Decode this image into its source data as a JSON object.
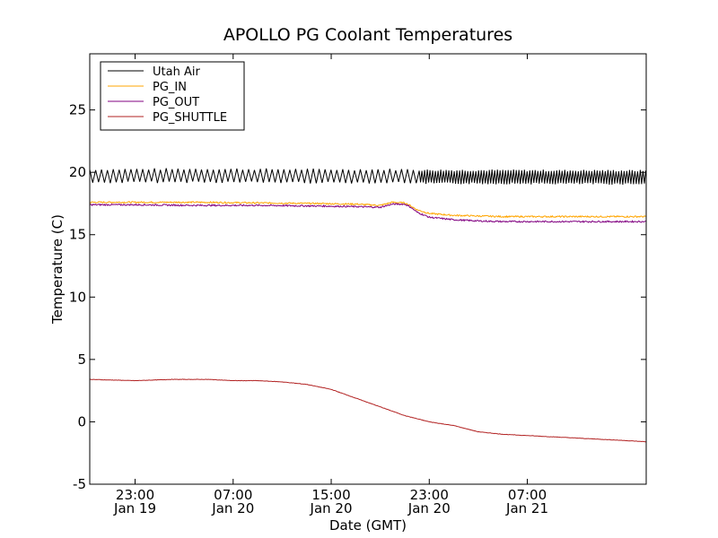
{
  "chart_data": {
    "type": "line",
    "title": "APOLLO PG Coolant Temperatures",
    "xlabel": "Date (GMT)",
    "ylabel": "Temperature (C)",
    "ylim": [
      -5,
      29.5
    ],
    "xlim": [
      -3.7,
      41.7
    ],
    "x_unit": "hours since Jan 19 23:00 GMT",
    "yticks": [
      -5,
      0,
      5,
      10,
      15,
      20,
      25
    ],
    "xticks": [
      {
        "value": 0,
        "time": "23:00",
        "date": "Jan 19"
      },
      {
        "value": 8,
        "time": "07:00",
        "date": "Jan 20"
      },
      {
        "value": 16,
        "time": "15:00",
        "date": "Jan 20"
      },
      {
        "value": 24,
        "time": "23:00",
        "date": "Jan 20"
      },
      {
        "value": 32,
        "time": "07:00",
        "date": "Jan 21"
      }
    ],
    "grid": false,
    "legend_position": "top-left",
    "series": [
      {
        "name": "Utah Air",
        "color": "#000000",
        "note": "oscillating about 19.7 C, amplitude ~0.5; denser sampling after hour 23",
        "x": [
          -3.7,
          5,
          15,
          23,
          23.2,
          41.7
        ],
        "y": [
          19.7,
          19.75,
          19.7,
          19.7,
          19.65,
          19.6
        ]
      },
      {
        "name": "PG_IN",
        "color": "#ffa500",
        "x": [
          -3.7,
          0,
          5,
          10,
          15,
          18,
          20,
          21,
          22,
          22.5,
          23,
          24,
          26,
          28,
          30,
          34,
          41.7
        ],
        "y": [
          17.6,
          17.6,
          17.6,
          17.55,
          17.5,
          17.45,
          17.35,
          17.6,
          17.55,
          17.3,
          17.0,
          16.7,
          16.55,
          16.5,
          16.45,
          16.45,
          16.45
        ]
      },
      {
        "name": "PG_OUT",
        "color": "#800080",
        "x": [
          -3.7,
          0,
          5,
          10,
          15,
          18,
          20,
          21,
          22,
          22.5,
          23,
          24,
          26,
          28,
          30,
          34,
          41.7
        ],
        "y": [
          17.4,
          17.4,
          17.35,
          17.35,
          17.3,
          17.25,
          17.2,
          17.45,
          17.45,
          17.2,
          16.8,
          16.4,
          16.2,
          16.1,
          16.05,
          16.05,
          16.05
        ]
      },
      {
        "name": "PG_SHUTTLE",
        "color": "#b22222",
        "x": [
          -3.7,
          0,
          3,
          6,
          8,
          10,
          12,
          14,
          16,
          18,
          20,
          22,
          24,
          26,
          28,
          30,
          32,
          34,
          36,
          38,
          40,
          41.7
        ],
        "y": [
          3.4,
          3.3,
          3.4,
          3.4,
          3.3,
          3.3,
          3.2,
          3.0,
          2.6,
          1.9,
          1.2,
          0.5,
          0.0,
          -0.3,
          -0.8,
          -1.0,
          -1.1,
          -1.2,
          -1.3,
          -1.4,
          -1.5,
          -1.6
        ]
      }
    ]
  }
}
